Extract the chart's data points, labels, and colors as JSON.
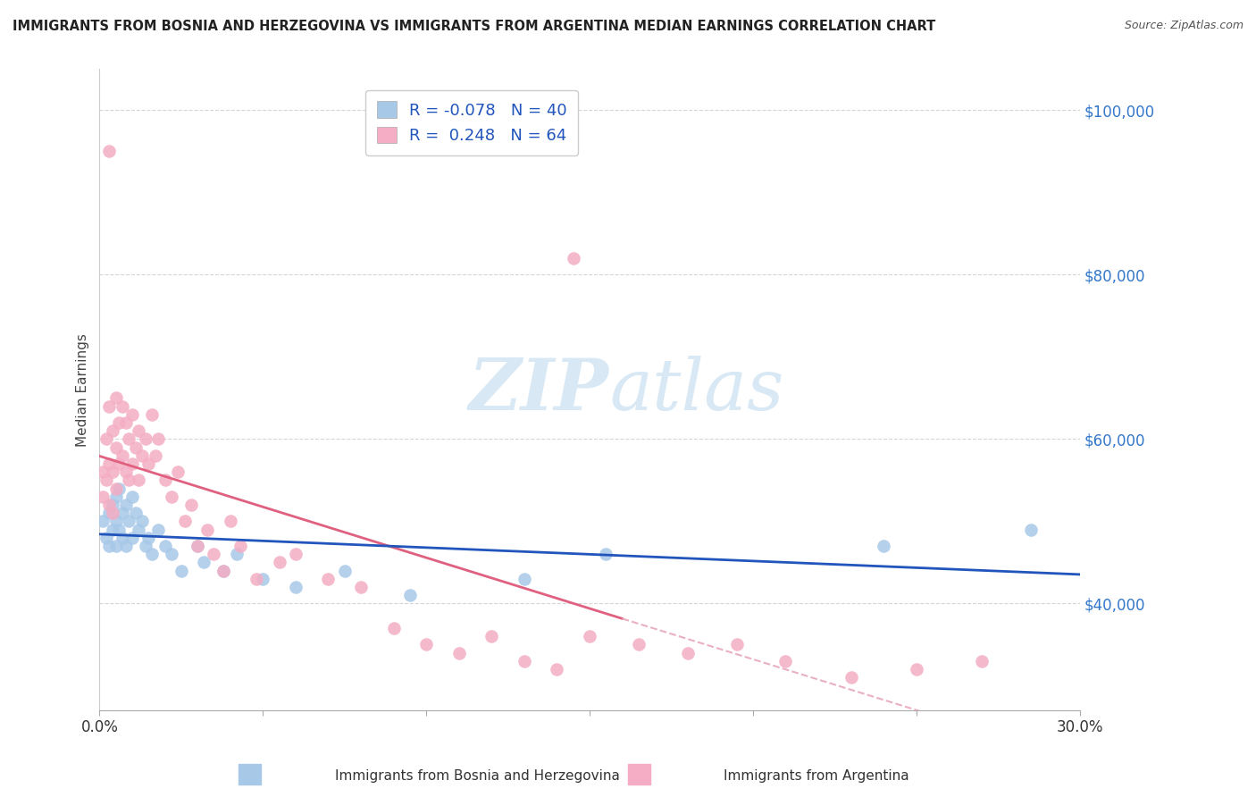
{
  "title": "IMMIGRANTS FROM BOSNIA AND HERZEGOVINA VS IMMIGRANTS FROM ARGENTINA MEDIAN EARNINGS CORRELATION CHART",
  "source": "Source: ZipAtlas.com",
  "ylabel": "Median Earnings",
  "xlim": [
    0.0,
    0.3
  ],
  "ylim": [
    27000,
    105000
  ],
  "yticks": [
    40000,
    60000,
    80000,
    100000
  ],
  "ytick_labels": [
    "$40,000",
    "$60,000",
    "$80,000",
    "$100,000"
  ],
  "xtick_positions": [
    0.0,
    0.05,
    0.1,
    0.15,
    0.2,
    0.25,
    0.3
  ],
  "xtick_labels": [
    "0.0%",
    "",
    "",
    "",
    "",
    "",
    "30.0%"
  ],
  "blue_R": -0.078,
  "blue_N": 40,
  "pink_R": 0.248,
  "pink_N": 64,
  "blue_color": "#a8c8e8",
  "pink_color": "#f4adc4",
  "blue_line_color": "#2255bb",
  "pink_line_color": "#e06080",
  "pink_dash_color": "#e8b0c0",
  "watermark_color": "#d8e8f4",
  "background_color": "#ffffff",
  "blue_x": [
    0.001,
    0.002,
    0.003,
    0.003,
    0.004,
    0.004,
    0.005,
    0.005,
    0.005,
    0.006,
    0.006,
    0.007,
    0.007,
    0.008,
    0.008,
    0.009,
    0.01,
    0.01,
    0.011,
    0.012,
    0.013,
    0.014,
    0.015,
    0.016,
    0.018,
    0.02,
    0.022,
    0.025,
    0.03,
    0.032,
    0.038,
    0.042,
    0.05,
    0.06,
    0.075,
    0.095,
    0.13,
    0.155,
    0.24,
    0.285
  ],
  "blue_y": [
    50000,
    48000,
    51000,
    47000,
    52000,
    49000,
    53000,
    50000,
    47000,
    54000,
    49000,
    51000,
    48000,
    52000,
    47000,
    50000,
    53000,
    48000,
    51000,
    49000,
    50000,
    47000,
    48000,
    46000,
    49000,
    47000,
    46000,
    44000,
    47000,
    45000,
    44000,
    46000,
    43000,
    42000,
    44000,
    41000,
    43000,
    46000,
    47000,
    49000
  ],
  "pink_x": [
    0.001,
    0.001,
    0.002,
    0.002,
    0.003,
    0.003,
    0.003,
    0.004,
    0.004,
    0.004,
    0.005,
    0.005,
    0.005,
    0.006,
    0.006,
    0.007,
    0.007,
    0.008,
    0.008,
    0.009,
    0.009,
    0.01,
    0.01,
    0.011,
    0.012,
    0.012,
    0.013,
    0.014,
    0.015,
    0.016,
    0.017,
    0.018,
    0.02,
    0.022,
    0.024,
    0.026,
    0.028,
    0.03,
    0.033,
    0.035,
    0.038,
    0.04,
    0.043,
    0.048,
    0.055,
    0.06,
    0.07,
    0.08,
    0.09,
    0.1,
    0.11,
    0.12,
    0.13,
    0.14,
    0.15,
    0.003,
    0.165,
    0.18,
    0.195,
    0.21,
    0.23,
    0.25,
    0.27,
    0.145
  ],
  "pink_y": [
    56000,
    53000,
    60000,
    55000,
    64000,
    57000,
    52000,
    61000,
    56000,
    51000,
    65000,
    59000,
    54000,
    62000,
    57000,
    64000,
    58000,
    62000,
    56000,
    60000,
    55000,
    63000,
    57000,
    59000,
    61000,
    55000,
    58000,
    60000,
    57000,
    63000,
    58000,
    60000,
    55000,
    53000,
    56000,
    50000,
    52000,
    47000,
    49000,
    46000,
    44000,
    50000,
    47000,
    43000,
    45000,
    46000,
    43000,
    42000,
    37000,
    35000,
    34000,
    36000,
    33000,
    32000,
    36000,
    95000,
    35000,
    34000,
    35000,
    33000,
    31000,
    32000,
    33000,
    82000
  ]
}
